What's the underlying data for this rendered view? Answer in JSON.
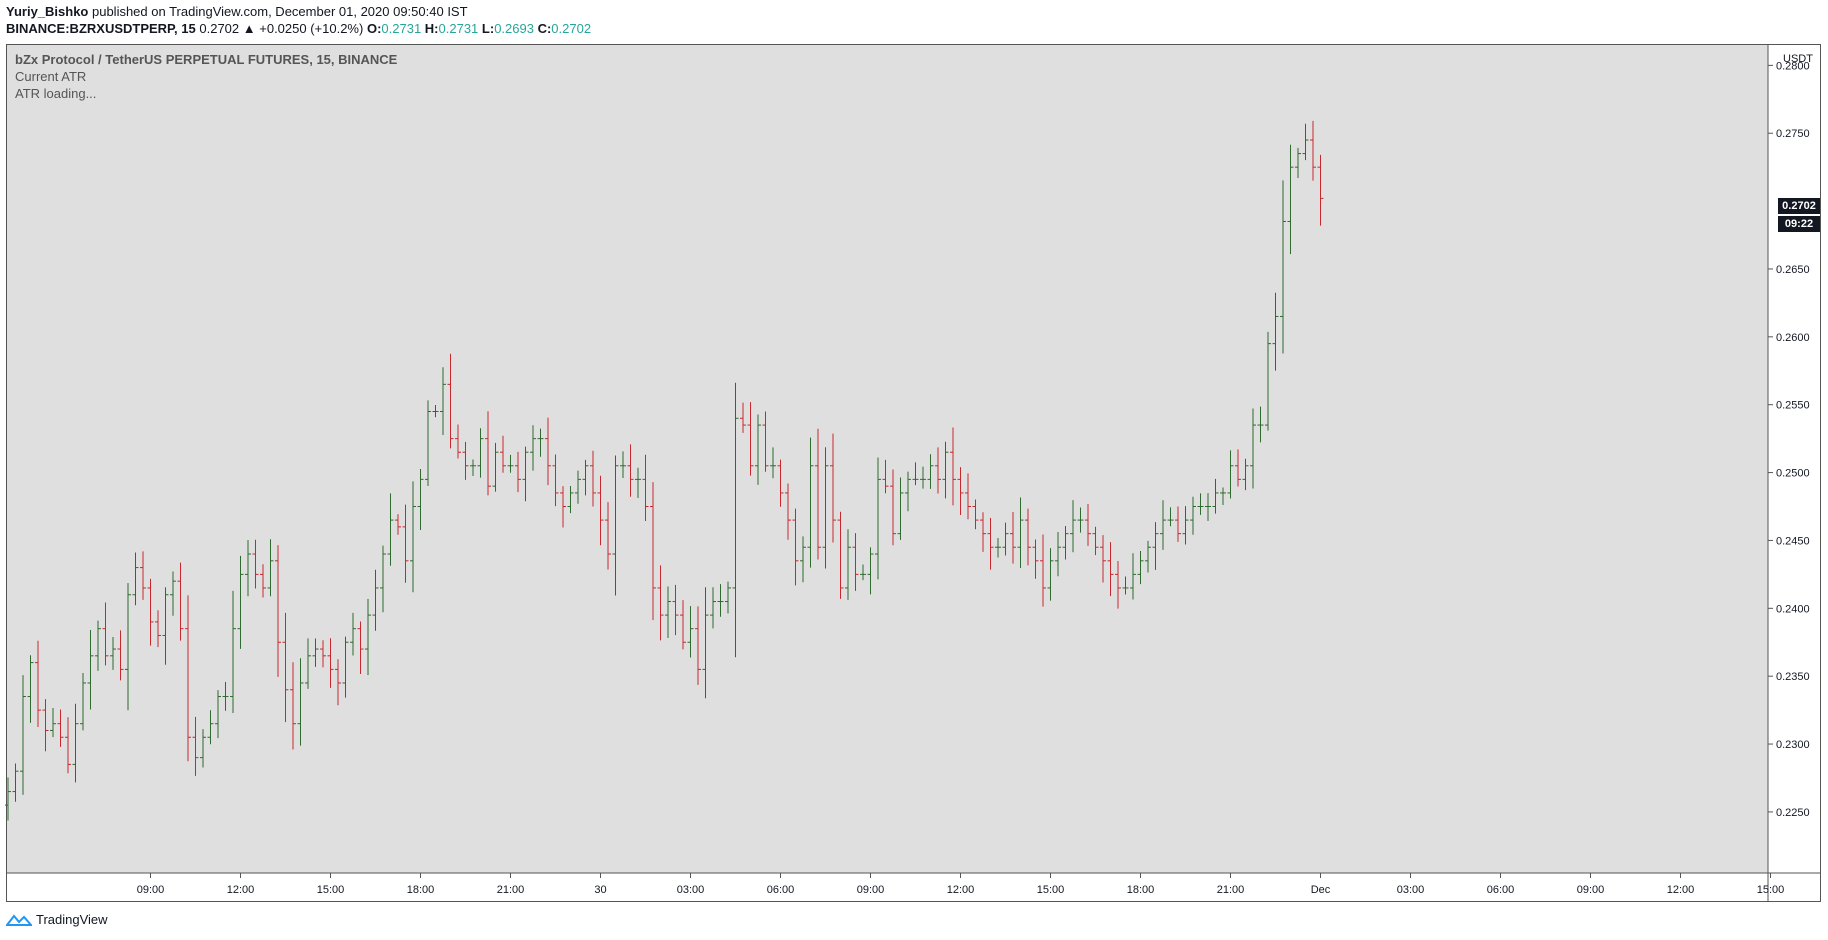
{
  "header": {
    "author": "Yuriy_Bishko",
    "published_text": " published on TradingView.com, December 01, 2020 09:50:40 IST",
    "symbol": "BINANCE:BZRXUSDTPERP, 15",
    "last": "0.2702",
    "change": "▲ +0.0250 (+10.2%)",
    "o_label": "O:",
    "o": "0.2731",
    "h_label": "H:",
    "h": "0.2731",
    "l_label": "L:",
    "l": "0.2693",
    "c_label": "C:",
    "c": "0.2702"
  },
  "legend": {
    "title": "bZx Protocol / TetherUS PERPETUAL FUTURES, 15, BINANCE",
    "atr_label": "Current ATR",
    "atr_value": "ATR loading..."
  },
  "price_badge": "0.2702",
  "time_badge": "09:22",
  "footer": {
    "brand": "TradingView"
  },
  "colors": {
    "up": "#2e6b2e",
    "down": "#c8282d",
    "bg": "#dfdfdf"
  },
  "chart_data": {
    "type": "ohlc-bar",
    "title": "bZx Protocol / TetherUS PERPETUAL FUTURES, 15, BINANCE",
    "currency": "USDT",
    "ylim": [
      0.2205,
      0.2815
    ],
    "y_ticks": [
      "0.2800",
      "0.2750",
      "0.2650",
      "0.2600",
      "0.2550",
      "0.2500",
      "0.2450",
      "0.2400",
      "0.2350",
      "0.2300",
      "0.2250"
    ],
    "x_tick_labels": [
      "09:00",
      "12:00",
      "15:00",
      "18:00",
      "21:00",
      "30",
      "03:00",
      "06:00",
      "09:00",
      "12:00",
      "15:00",
      "18:00",
      "21:00",
      "Dec",
      "03:00",
      "06:00",
      "09:00",
      "12:00",
      "15:00"
    ],
    "x_tick_index": [
      19,
      31,
      43,
      55,
      67,
      79,
      91,
      103,
      115,
      127,
      139,
      151,
      163,
      175,
      187,
      199,
      211,
      223,
      235
    ],
    "price_series": [
      0.2265,
      0.228,
      0.2335,
      0.236,
      0.2325,
      0.231,
      0.2315,
      0.2305,
      0.2285,
      0.2315,
      0.2345,
      0.2365,
      0.2385,
      0.2365,
      0.237,
      0.2355,
      0.241,
      0.243,
      0.2415,
      0.239,
      0.238,
      0.241,
      0.242,
      0.2385,
      0.2305,
      0.229,
      0.2305,
      0.2315,
      0.2335,
      0.2335,
      0.2385,
      0.2425,
      0.244,
      0.2425,
      0.2415,
      0.2435,
      0.2375,
      0.234,
      0.2315,
      0.2345,
      0.2365,
      0.237,
      0.2365,
      0.2355,
      0.2345,
      0.2375,
      0.2385,
      0.237,
      0.2395,
      0.2415,
      0.244,
      0.2465,
      0.246,
      0.2435,
      0.2475,
      0.2495,
      0.2545,
      0.2545,
      0.2565,
      0.2525,
      0.2515,
      0.2505,
      0.2505,
      0.2525,
      0.249,
      0.2515,
      0.2505,
      0.2505,
      0.2495,
      0.2515,
      0.2525,
      0.2525,
      0.2505,
      0.2485,
      0.2475,
      0.2485,
      0.2495,
      0.2505,
      0.2485,
      0.2465,
      0.244,
      0.2505,
      0.2505,
      0.2495,
      0.2495,
      0.2475,
      0.2415,
      0.2395,
      0.2405,
      0.2395,
      0.2375,
      0.2385,
      0.2355,
      0.2395,
      0.2405,
      0.2405,
      0.2415,
      0.254,
      0.2535,
      0.2505,
      0.2535,
      0.2505,
      0.2505,
      0.2485,
      0.2465,
      0.2435,
      0.2445,
      0.2505,
      0.2445,
      0.2505,
      0.2465,
      0.2415,
      0.2445,
      0.2425,
      0.2425,
      0.244,
      0.2495,
      0.249,
      0.2455,
      0.2485,
      0.2495,
      0.2495,
      0.2495,
      0.2505,
      0.2495,
      0.2515,
      0.2495,
      0.2485,
      0.2475,
      0.2465,
      0.2455,
      0.2445,
      0.2445,
      0.2455,
      0.2445,
      0.2465,
      0.2445,
      0.2435,
      0.2415,
      0.2435,
      0.2445,
      0.2455,
      0.2465,
      0.2465,
      0.2455,
      0.2445,
      0.2435,
      0.2425,
      0.2415,
      0.2415,
      0.2425,
      0.2435,
      0.2445,
      0.2455,
      0.2465,
      0.2465,
      0.2455,
      0.2465,
      0.2475,
      0.2475,
      0.2475,
      0.2485,
      0.2485,
      0.2505,
      0.2495,
      0.2505,
      0.2535,
      0.2535,
      0.2595,
      0.2615,
      0.2685,
      0.2725,
      0.2735,
      0.2745,
      0.2725,
      0.2702
    ],
    "series": [
      {
        "name": "BZRXUSDTPERP 15m",
        "values_ref": "price_series"
      }
    ]
  }
}
